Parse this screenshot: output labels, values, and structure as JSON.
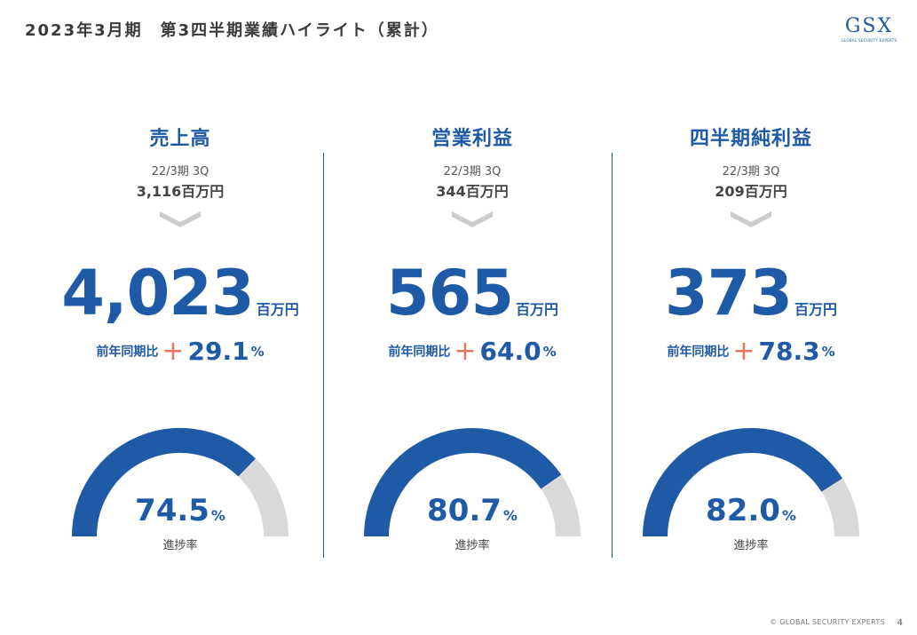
{
  "header": {
    "title": "2023年3月期　第3四半期業績ハイライト（累計）",
    "logo_text": "GSX",
    "logo_sub": "GLOBAL SECURITY EXPERTS"
  },
  "columns": [
    {
      "title": "売上高",
      "prev_period": "22/3期 3Q",
      "prev_value": "3,116百万円",
      "value": "4,023",
      "unit": "百万円",
      "yoy_label": "前年同期比",
      "yoy_sign": "+",
      "yoy_value": "29.1",
      "yoy_unit": "%",
      "progress_value": "74.5",
      "progress_unit": "%",
      "progress_label": "進捗率",
      "progress_percent": 74.5
    },
    {
      "title": "営業利益",
      "prev_period": "22/3期 3Q",
      "prev_value": "344百万円",
      "value": "565",
      "unit": "百万円",
      "yoy_label": "前年同期比",
      "yoy_sign": "+",
      "yoy_value": "64.0",
      "yoy_unit": "%",
      "progress_value": "80.7",
      "progress_unit": "%",
      "progress_label": "進捗率",
      "progress_percent": 80.7
    },
    {
      "title": "四半期純利益",
      "prev_period": "22/3期 3Q",
      "prev_value": "209百万円",
      "value": "373",
      "unit": "百万円",
      "yoy_label": "前年同期比",
      "yoy_sign": "+",
      "yoy_value": "78.3",
      "yoy_unit": "%",
      "progress_value": "82.0",
      "progress_unit": "%",
      "progress_label": "進捗率",
      "progress_percent": 82.0
    }
  ],
  "footer": {
    "copyright": "© GLOBAL SECURITY EXPERTS",
    "page_number": "4"
  },
  "colors": {
    "accent": "#1f5aa6",
    "gauge_track": "#d9d9d9",
    "plus": "#e8765e",
    "chevron": "#cccccc"
  }
}
